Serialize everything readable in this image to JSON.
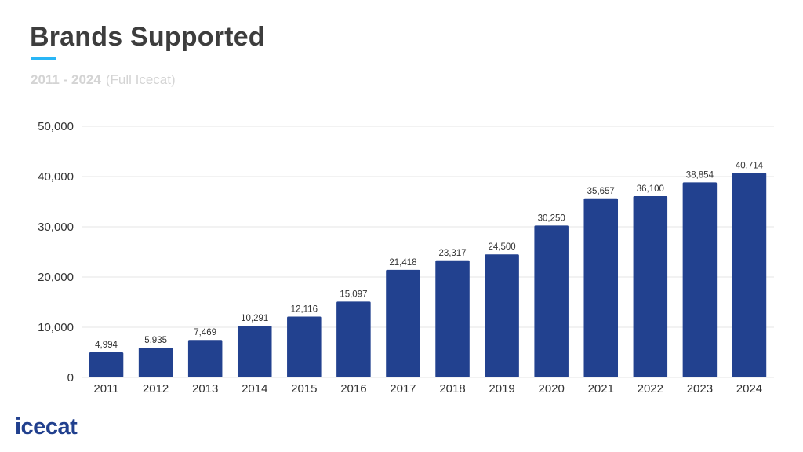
{
  "header": {
    "title": "Brands Supported",
    "subtitle_range": "2011 - 2024",
    "subtitle_note": "(Full Icecat)"
  },
  "logo": {
    "text": "icecat"
  },
  "colors": {
    "bar": "#22418f",
    "accent": "#29b6f6",
    "title": "#3d3d3d",
    "subtitle": "#d4d4d4",
    "grid": "#e6e6e6",
    "logo": "#21408e"
  },
  "chart_data": {
    "type": "bar",
    "title": "Brands Supported",
    "subtitle": "2011 - 2024 (Full Icecat)",
    "xlabel": "",
    "ylabel": "",
    "ylim": [
      0,
      50000
    ],
    "yticks": [
      0,
      10000,
      20000,
      30000,
      40000,
      50000
    ],
    "ytick_labels": [
      "0",
      "10,000",
      "20,000",
      "30,000",
      "40,000",
      "50,000"
    ],
    "grid": true,
    "categories": [
      "2011",
      "2012",
      "2013",
      "2014",
      "2015",
      "2016",
      "2017",
      "2018",
      "2019",
      "2020",
      "2021",
      "2022",
      "2023",
      "2024"
    ],
    "values": [
      4994,
      5935,
      7469,
      10291,
      12116,
      15097,
      21418,
      23317,
      24500,
      30250,
      35657,
      36100,
      38854,
      40714
    ],
    "value_labels": [
      "4,994",
      "5,935",
      "7,469",
      "10,291",
      "12,116",
      "15,097",
      "21,418",
      "23,317",
      "24,500",
      "30,250",
      "35,657",
      "36,100",
      "38,854",
      "40,714"
    ]
  }
}
